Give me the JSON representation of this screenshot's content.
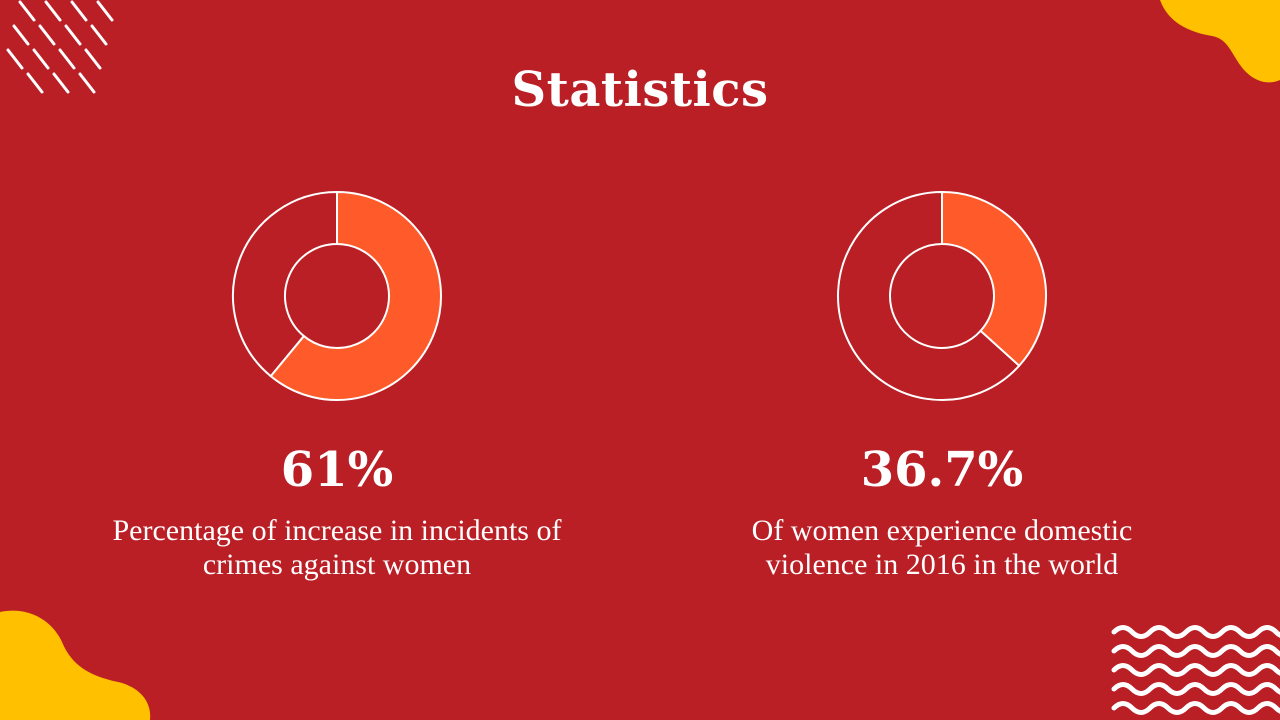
{
  "slide": {
    "title": "Statistics"
  },
  "colors": {
    "background": "#ba1f25",
    "accent": "#ff5a2a",
    "yellow": "#ffc000",
    "outline": "#ffffff"
  },
  "decorations": [
    "diagonal-dashes",
    "yellow-blob-top-right",
    "yellow-blob-bottom-left",
    "wave-lines"
  ],
  "chart_data": [
    {
      "type": "pie",
      "variant": "donut",
      "values": [
        61,
        39
      ],
      "highlight_index": 0,
      "value_label": "61%",
      "description": "Percentage of increase in incidents of crimes against women"
    },
    {
      "type": "pie",
      "variant": "donut",
      "values": [
        36.7,
        63.3
      ],
      "highlight_index": 0,
      "value_label": "36.7%",
      "description": "Of women experience domestic violence in 2016 in the world"
    }
  ]
}
